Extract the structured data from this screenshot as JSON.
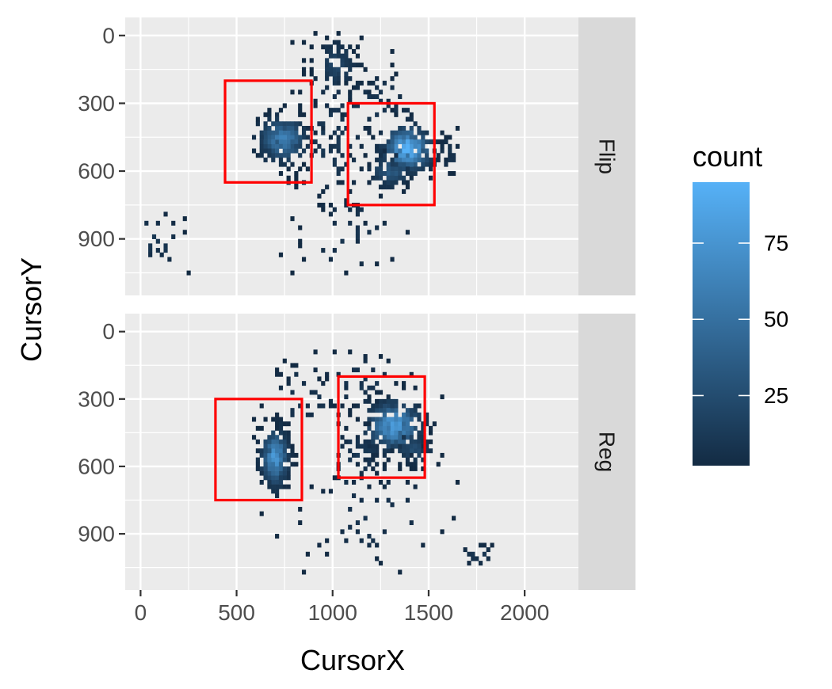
{
  "chart_data": {
    "type": "heatmap",
    "xlabel": "CursorX",
    "ylabel": "CursorY",
    "xlim": [
      -80,
      2280
    ],
    "ylim": [
      1150,
      -80
    ],
    "y_reversed": true,
    "x_ticks": [
      0,
      500,
      1000,
      1500,
      2000
    ],
    "x_tick_labels": [
      "0",
      "500",
      "1000",
      "1500",
      "2000"
    ],
    "y_ticks": [
      0,
      300,
      600,
      900
    ],
    "y_tick_labels": [
      "0",
      "300",
      "600",
      "900"
    ],
    "bin_size": 20,
    "grid": true,
    "legend": {
      "title": "count",
      "position": "right",
      "min": 2,
      "max": 95,
      "ticks": [
        25,
        50,
        75
      ],
      "tick_labels": [
        "25",
        "50",
        "75"
      ],
      "color_low": "#132B43",
      "color_high": "#56B1F7"
    },
    "facets": [
      {
        "label": "Flip",
        "boxes": [
          {
            "x0": 440,
            "x1": 890,
            "y0": 200,
            "y1": 650
          },
          {
            "x0": 1080,
            "x1": 1530,
            "y0": 300,
            "y1": 750
          }
        ],
        "clusters": [
          {
            "x": 740,
            "y": 460,
            "sx": 70,
            "sy": 55,
            "n": 260,
            "peak": 60
          },
          {
            "x": 1390,
            "y": 500,
            "sx": 70,
            "sy": 55,
            "n": 240,
            "peak": 95
          },
          {
            "x": 1300,
            "y": 600,
            "sx": 60,
            "sy": 40,
            "n": 90,
            "peak": 35
          },
          {
            "x": 1020,
            "y": 130,
            "sx": 70,
            "sy": 60,
            "n": 90,
            "peak": 20
          },
          {
            "x": 1000,
            "y": 450,
            "sx": 110,
            "sy": 180,
            "n": 90,
            "peak": 12
          },
          {
            "x": 1240,
            "y": 300,
            "sx": 120,
            "sy": 90,
            "n": 40,
            "peak": 10
          },
          {
            "x": 1600,
            "y": 520,
            "sx": 40,
            "sy": 60,
            "n": 20,
            "peak": 8
          },
          {
            "x": 1100,
            "y": 880,
            "sx": 180,
            "sy": 130,
            "n": 45,
            "peak": 8
          },
          {
            "x": 80,
            "y": 890,
            "sx": 90,
            "sy": 80,
            "n": 22,
            "peak": 12
          }
        ]
      },
      {
        "label": "Reg",
        "boxes": [
          {
            "x0": 390,
            "x1": 840,
            "y0": 300,
            "y1": 750
          },
          {
            "x0": 1030,
            "x1": 1480,
            "y0": 200,
            "y1": 650
          }
        ],
        "clusters": [
          {
            "x": 700,
            "y": 560,
            "sx": 40,
            "sy": 70,
            "n": 220,
            "peak": 75
          },
          {
            "x": 1320,
            "y": 420,
            "sx": 80,
            "sy": 60,
            "n": 240,
            "peak": 80
          },
          {
            "x": 1420,
            "y": 520,
            "sx": 60,
            "sy": 40,
            "n": 60,
            "peak": 25
          },
          {
            "x": 1150,
            "y": 530,
            "sx": 80,
            "sy": 80,
            "n": 60,
            "peak": 12
          },
          {
            "x": 1150,
            "y": 230,
            "sx": 120,
            "sy": 80,
            "n": 40,
            "peak": 10
          },
          {
            "x": 850,
            "y": 300,
            "sx": 120,
            "sy": 100,
            "n": 40,
            "peak": 10
          },
          {
            "x": 1200,
            "y": 800,
            "sx": 250,
            "sy": 170,
            "n": 60,
            "peak": 8
          },
          {
            "x": 1750,
            "y": 990,
            "sx": 60,
            "sy": 30,
            "n": 14,
            "peak": 10
          }
        ]
      }
    ]
  }
}
